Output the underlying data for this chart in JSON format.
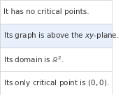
{
  "rows": [
    "It has no critical points.",
    "Its graph is above the $xy$-plane.",
    "Its domain is $\\mathbb{R}^2$.",
    "Its only critical point is $(0, 0)$."
  ],
  "background_color": "#ffffff",
  "border_color": "#cccccc",
  "text_color": "#333333",
  "font_size": 7.5,
  "line_color": "#cccccc",
  "highlight_row": 1,
  "highlight_color": "#e8f0fb"
}
